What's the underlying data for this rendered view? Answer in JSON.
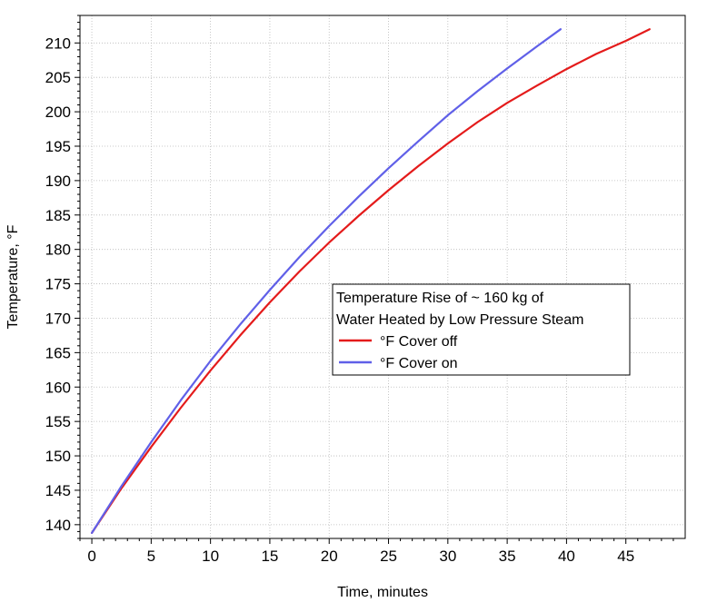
{
  "chart_data": {
    "type": "line",
    "title": "",
    "xlabel": "Time, minutes",
    "ylabel": "Temperature, °F",
    "xlim": [
      -1,
      50
    ],
    "ylim": [
      138,
      214
    ],
    "xticks": [
      0,
      5,
      10,
      15,
      20,
      25,
      30,
      35,
      40,
      45
    ],
    "yticks": [
      140,
      145,
      150,
      155,
      160,
      165,
      170,
      175,
      180,
      185,
      190,
      195,
      200,
      205,
      210
    ],
    "grid": true,
    "legend": {
      "title_lines": [
        "Temperature Rise of ~ 160 kg  of",
        "Water Heated by Low Pressure Steam"
      ],
      "placement": "center-right"
    },
    "series": [
      {
        "name": "°F Cover off",
        "color": "#e41b1b",
        "x": [
          0,
          2.5,
          5,
          7.5,
          10,
          12.5,
          15,
          17.5,
          20,
          22.5,
          25,
          27.5,
          30,
          32.5,
          35,
          37.5,
          40,
          42.5,
          45,
          47
        ],
        "y": [
          138.8,
          145.3,
          151.3,
          157.0,
          162.4,
          167.5,
          172.3,
          176.8,
          181.0,
          184.9,
          188.6,
          192.1,
          195.4,
          198.5,
          201.3,
          203.8,
          206.2,
          208.4,
          210.3,
          212.0
        ]
      },
      {
        "name": "°F Cover on",
        "color": "#6060e8",
        "x": [
          0,
          2.5,
          5,
          7.5,
          10,
          12.5,
          15,
          17.5,
          20,
          22.5,
          25,
          27.5,
          30,
          32.5,
          35,
          37.5,
          39.5
        ],
        "y": [
          138.8,
          145.6,
          152.0,
          158.1,
          163.8,
          169.1,
          174.1,
          178.9,
          183.4,
          187.7,
          191.8,
          195.7,
          199.5,
          203.0,
          206.3,
          209.5,
          212.0
        ]
      }
    ]
  }
}
